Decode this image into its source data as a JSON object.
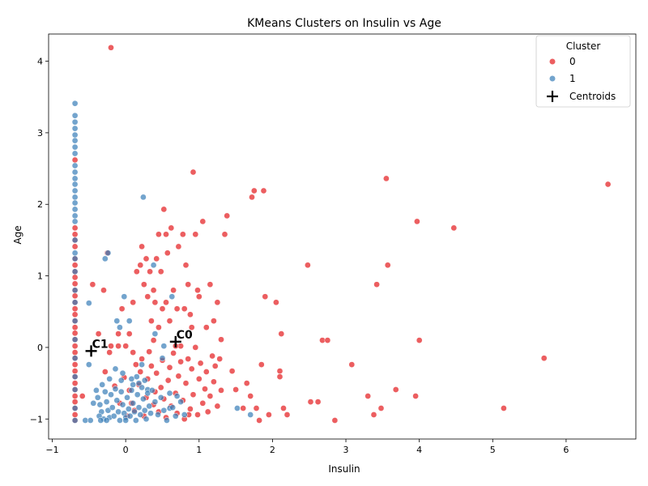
{
  "colors": {
    "cluster0": "#e41a1c",
    "cluster1": "#377eb8",
    "centroid": "#000000"
  },
  "chart_data": {
    "type": "scatter",
    "title": "KMeans Clusters on Insulin vs Age",
    "xlabel": "Insulin",
    "ylabel": "Age",
    "xlim": [
      -1.05,
      6.95
    ],
    "ylim": [
      -1.28,
      4.38
    ],
    "xticks": [
      -1,
      0,
      1,
      2,
      3,
      4,
      5,
      6
    ],
    "yticks": [
      -1,
      0,
      1,
      2,
      3,
      4
    ],
    "grid": false,
    "legend": {
      "title": "Cluster",
      "position": "top-right",
      "entries": [
        {
          "label": "0",
          "marker": "circle",
          "series": "0"
        },
        {
          "label": "1",
          "marker": "circle",
          "series": "1"
        },
        {
          "label": "Centroids",
          "marker": "plus",
          "series": "centroids"
        }
      ]
    },
    "series": [
      {
        "name": "0",
        "points": [
          [
            -0.69,
            2.62
          ],
          [
            -0.69,
            1.67
          ],
          [
            -0.69,
            1.58
          ],
          [
            -0.69,
            1.5
          ],
          [
            -0.69,
            1.41
          ],
          [
            -0.69,
            1.24
          ],
          [
            -0.69,
            1.15
          ],
          [
            -0.69,
            1.06
          ],
          [
            -0.69,
            0.98
          ],
          [
            -0.69,
            0.89
          ],
          [
            -0.69,
            0.8
          ],
          [
            -0.69,
            0.72
          ],
          [
            -0.69,
            0.63
          ],
          [
            -0.69,
            0.54
          ],
          [
            -0.69,
            0.46
          ],
          [
            -0.69,
            0.37
          ],
          [
            -0.69,
            0.28
          ],
          [
            -0.69,
            0.2
          ],
          [
            -0.69,
            0.11
          ],
          [
            -0.69,
            0.02
          ],
          [
            -0.69,
            -0.07
          ],
          [
            -0.69,
            -0.15
          ],
          [
            -0.69,
            -0.24
          ],
          [
            -0.69,
            -0.33
          ],
          [
            -0.69,
            -0.41
          ],
          [
            -0.69,
            -0.5
          ],
          [
            -0.69,
            -0.59
          ],
          [
            -0.69,
            -0.68
          ],
          [
            -0.69,
            -0.76
          ],
          [
            -0.69,
            -0.85
          ],
          [
            -0.69,
            -0.94
          ],
          [
            -0.69,
            -1.02
          ],
          [
            -0.2,
            4.19
          ],
          [
            -0.59,
            -0.68
          ],
          [
            -0.45,
            0.88
          ],
          [
            -0.3,
            0.8
          ],
          [
            -0.37,
            0.19
          ],
          [
            -0.25,
            1.32
          ],
          [
            -0.2,
            0.02
          ],
          [
            -0.22,
            -0.07
          ],
          [
            -0.1,
            0.02
          ],
          [
            -0.1,
            0.19
          ],
          [
            -0.05,
            0.54
          ],
          [
            0.0,
            0.02
          ],
          [
            0.05,
            0.19
          ],
          [
            0.1,
            0.63
          ],
          [
            0.1,
            -0.07
          ],
          [
            0.15,
            1.06
          ],
          [
            0.2,
            1.15
          ],
          [
            0.22,
            1.41
          ],
          [
            0.25,
            0.88
          ],
          [
            0.28,
            1.24
          ],
          [
            0.3,
            0.71
          ],
          [
            0.33,
            1.06
          ],
          [
            0.35,
            0.37
          ],
          [
            0.38,
            0.8
          ],
          [
            0.4,
            0.63
          ],
          [
            0.42,
            1.24
          ],
          [
            0.45,
            1.58
          ],
          [
            0.48,
            1.06
          ],
          [
            0.5,
            0.54
          ],
          [
            0.52,
            1.93
          ],
          [
            0.55,
            1.58
          ],
          [
            0.57,
            1.32
          ],
          [
            0.6,
            0.37
          ],
          [
            0.62,
            1.67
          ],
          [
            0.65,
            0.8
          ],
          [
            0.7,
            0.54
          ],
          [
            0.72,
            1.41
          ],
          [
            0.75,
            0.02
          ],
          [
            0.78,
            1.58
          ],
          [
            0.8,
            0.54
          ],
          [
            0.82,
            1.15
          ],
          [
            0.85,
            0.88
          ],
          [
            0.88,
            0.46
          ],
          [
            0.9,
            0.28
          ],
          [
            0.92,
            2.45
          ],
          [
            0.95,
            1.58
          ],
          [
            0.98,
            0.8
          ],
          [
            1.0,
            0.71
          ],
          [
            1.05,
            1.76
          ],
          [
            1.1,
            0.28
          ],
          [
            1.15,
            0.88
          ],
          [
            1.2,
            0.37
          ],
          [
            1.25,
            0.63
          ],
          [
            1.3,
            0.11
          ],
          [
            1.35,
            1.58
          ],
          [
            1.38,
            1.84
          ],
          [
            1.45,
            -0.33
          ],
          [
            1.5,
            -0.59
          ],
          [
            1.6,
            -0.85
          ],
          [
            1.65,
            -0.5
          ],
          [
            1.7,
            -0.68
          ],
          [
            1.72,
            2.1
          ],
          [
            1.75,
            2.19
          ],
          [
            1.78,
            -0.85
          ],
          [
            1.82,
            -1.02
          ],
          [
            1.85,
            -0.24
          ],
          [
            1.88,
            2.19
          ],
          [
            1.9,
            0.71
          ],
          [
            1.95,
            -0.94
          ],
          [
            2.05,
            0.63
          ],
          [
            2.1,
            -0.33
          ],
          [
            2.1,
            -0.41
          ],
          [
            2.12,
            0.19
          ],
          [
            2.15,
            -0.85
          ],
          [
            2.2,
            -0.94
          ],
          [
            2.48,
            1.15
          ],
          [
            2.52,
            -0.76
          ],
          [
            2.62,
            -0.76
          ],
          [
            2.68,
            0.1
          ],
          [
            2.75,
            0.1
          ],
          [
            2.85,
            -1.02
          ],
          [
            3.08,
            -0.24
          ],
          [
            3.3,
            -0.68
          ],
          [
            3.38,
            -0.94
          ],
          [
            3.42,
            0.88
          ],
          [
            3.48,
            -0.85
          ],
          [
            3.55,
            2.36
          ],
          [
            3.57,
            1.15
          ],
          [
            3.68,
            -0.59
          ],
          [
            3.95,
            -0.68
          ],
          [
            3.97,
            1.76
          ],
          [
            4.0,
            0.1
          ],
          [
            4.47,
            1.67
          ],
          [
            5.15,
            -0.85
          ],
          [
            5.7,
            -0.15
          ],
          [
            6.57,
            2.28
          ],
          [
            -0.02,
            -0.42
          ],
          [
            0.05,
            -0.6
          ],
          [
            0.08,
            -0.78
          ],
          [
            0.12,
            -0.88
          ],
          [
            0.18,
            -0.52
          ],
          [
            0.2,
            -0.34
          ],
          [
            0.22,
            -0.16
          ],
          [
            0.25,
            -0.96
          ],
          [
            0.28,
            -0.7
          ],
          [
            0.3,
            -0.44
          ],
          [
            0.32,
            -0.06
          ],
          [
            0.35,
            -0.26
          ],
          [
            0.38,
            -0.8
          ],
          [
            0.4,
            -0.62
          ],
          [
            0.42,
            -0.36
          ],
          [
            0.45,
            -0.9
          ],
          [
            0.48,
            -0.56
          ],
          [
            0.5,
            -0.18
          ],
          [
            0.52,
            -0.72
          ],
          [
            0.55,
            -0.98
          ],
          [
            0.58,
            -0.46
          ],
          [
            0.6,
            -0.28
          ],
          [
            0.62,
            -0.82
          ],
          [
            0.65,
            -0.08
          ],
          [
            0.68,
            -0.64
          ],
          [
            0.7,
            -0.92
          ],
          [
            0.72,
            -0.4
          ],
          [
            0.75,
            -0.2
          ],
          [
            0.78,
            -0.74
          ],
          [
            0.8,
            -1.0
          ],
          [
            0.82,
            -0.5
          ],
          [
            0.85,
            -0.16
          ],
          [
            0.88,
            -0.86
          ],
          [
            0.9,
            -0.3
          ],
          [
            0.92,
            -0.66
          ],
          [
            0.95,
            0.0
          ],
          [
            0.98,
            -0.94
          ],
          [
            1.0,
            -0.44
          ],
          [
            1.02,
            -0.22
          ],
          [
            1.05,
            -0.78
          ],
          [
            1.08,
            -0.58
          ],
          [
            1.1,
            -0.34
          ],
          [
            1.12,
            -0.9
          ],
          [
            1.15,
            -0.68
          ],
          [
            1.18,
            -0.12
          ],
          [
            1.2,
            -0.48
          ],
          [
            1.22,
            -0.26
          ],
          [
            1.25,
            -0.82
          ],
          [
            1.28,
            -0.16
          ],
          [
            1.3,
            -0.6
          ],
          [
            -0.28,
            -0.34
          ],
          [
            -0.15,
            -0.54
          ],
          [
            -0.08,
            -0.78
          ],
          [
            0.02,
            -0.96
          ],
          [
            0.14,
            -0.24
          ],
          [
            0.38,
            0.1
          ],
          [
            0.45,
            0.28
          ],
          [
            0.55,
            0.63
          ],
          [
            0.68,
            0.02
          ],
          [
            0.86,
            -0.94
          ]
        ]
      },
      {
        "name": "1",
        "points": [
          [
            -0.69,
            3.41
          ],
          [
            -0.69,
            3.24
          ],
          [
            -0.69,
            3.15
          ],
          [
            -0.69,
            3.06
          ],
          [
            -0.69,
            2.97
          ],
          [
            -0.69,
            2.89
          ],
          [
            -0.69,
            2.8
          ],
          [
            -0.69,
            2.71
          ],
          [
            -0.69,
            2.54
          ],
          [
            -0.69,
            2.45
          ],
          [
            -0.69,
            2.36
          ],
          [
            -0.69,
            2.28
          ],
          [
            -0.69,
            2.19
          ],
          [
            -0.69,
            2.1
          ],
          [
            -0.69,
            2.02
          ],
          [
            -0.69,
            1.93
          ],
          [
            -0.69,
            1.84
          ],
          [
            -0.69,
            1.76
          ],
          [
            -0.69,
            1.5
          ],
          [
            -0.69,
            1.32
          ],
          [
            -0.69,
            1.24
          ],
          [
            -0.69,
            1.06
          ],
          [
            -0.69,
            0.8
          ],
          [
            -0.69,
            0.63
          ],
          [
            -0.69,
            0.37
          ],
          [
            -0.69,
            0.11
          ],
          [
            -0.69,
            -0.15
          ],
          [
            -0.69,
            -0.41
          ],
          [
            -0.69,
            -0.59
          ],
          [
            -0.69,
            -0.85
          ],
          [
            -0.69,
            -1.02
          ],
          [
            -0.5,
            0.62
          ],
          [
            -0.5,
            -0.24
          ],
          [
            -0.55,
            -1.02
          ],
          [
            -0.48,
            -1.02
          ],
          [
            -0.28,
            1.24
          ],
          [
            -0.24,
            1.32
          ],
          [
            0.24,
            2.1
          ],
          [
            0.38,
            1.15
          ],
          [
            0.63,
            0.71
          ],
          [
            -0.12,
            0.37
          ],
          [
            -0.08,
            0.28
          ],
          [
            -0.02,
            0.71
          ],
          [
            0.05,
            0.37
          ],
          [
            0.15,
            -0.41
          ],
          [
            0.22,
            -0.24
          ],
          [
            0.3,
            -0.59
          ],
          [
            0.4,
            0.19
          ],
          [
            0.5,
            -0.15
          ],
          [
            0.52,
            0.02
          ],
          [
            0.6,
            -0.85
          ],
          [
            0.7,
            -0.68
          ],
          [
            0.75,
            -0.76
          ],
          [
            0.8,
            -0.94
          ],
          [
            1.52,
            -0.85
          ],
          [
            1.7,
            -0.94
          ],
          [
            -0.4,
            -0.6
          ],
          [
            -0.38,
            -0.7
          ],
          [
            -0.35,
            -0.8
          ],
          [
            -0.33,
            -0.9
          ],
          [
            -0.3,
            -1.0
          ],
          [
            -0.28,
            -0.62
          ],
          [
            -0.26,
            -0.76
          ],
          [
            -0.24,
            -0.88
          ],
          [
            -0.22,
            -0.98
          ],
          [
            -0.2,
            -0.66
          ],
          [
            -0.18,
            -0.84
          ],
          [
            -0.16,
            -0.96
          ],
          [
            -0.14,
            -0.58
          ],
          [
            -0.12,
            -0.74
          ],
          [
            -0.1,
            -0.9
          ],
          [
            -0.08,
            -1.02
          ],
          [
            -0.06,
            -0.62
          ],
          [
            -0.04,
            -0.8
          ],
          [
            -0.02,
            -0.92
          ],
          [
            0.0,
            -0.98
          ],
          [
            0.02,
            -0.7
          ],
          [
            0.04,
            -0.86
          ],
          [
            0.06,
            -0.96
          ],
          [
            0.08,
            -0.6
          ],
          [
            0.1,
            -0.78
          ],
          [
            0.12,
            -0.9
          ],
          [
            0.14,
            -1.02
          ],
          [
            0.16,
            -0.66
          ],
          [
            0.18,
            -0.84
          ],
          [
            0.2,
            -0.94
          ],
          [
            0.22,
            -0.56
          ],
          [
            0.24,
            -0.72
          ],
          [
            0.26,
            -0.88
          ],
          [
            0.28,
            -1.0
          ],
          [
            0.3,
            -0.64
          ],
          [
            0.32,
            -0.82
          ],
          [
            0.34,
            -0.92
          ],
          [
            0.36,
            -0.6
          ],
          [
            0.4,
            -0.76
          ],
          [
            0.44,
            -0.94
          ],
          [
            0.48,
            -0.7
          ],
          [
            0.52,
            -0.88
          ],
          [
            0.56,
            -1.02
          ],
          [
            0.6,
            -0.64
          ],
          [
            0.64,
            -0.84
          ],
          [
            0.68,
            -0.96
          ],
          [
            -0.44,
            -0.78
          ],
          [
            -0.36,
            -0.96
          ],
          [
            -0.32,
            -0.52
          ],
          [
            -0.06,
            -0.46
          ],
          [
            0.1,
            -0.52
          ],
          [
            0.26,
            -0.46
          ],
          [
            -0.22,
            -0.44
          ],
          [
            -0.14,
            -0.3
          ],
          [
            -0.04,
            -0.36
          ],
          [
            0.08,
            -0.44
          ],
          [
            0.18,
            -0.5
          ],
          [
            -0.26,
            -1.02
          ],
          [
            -0.34,
            -1.02
          ],
          [
            0.0,
            -1.02
          ]
        ]
      },
      {
        "name": "centroids",
        "points": [
          [
            0.68,
            0.08
          ],
          [
            -0.47,
            -0.05
          ]
        ],
        "labels": [
          "C0",
          "C1"
        ]
      }
    ]
  }
}
